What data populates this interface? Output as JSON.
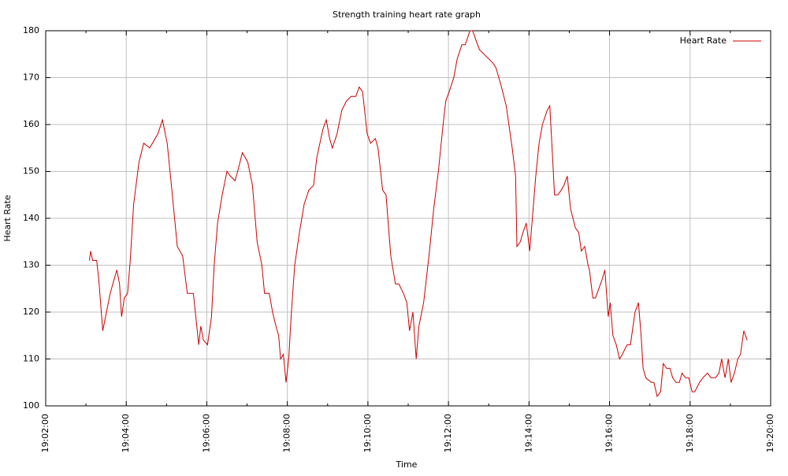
{
  "chart_data": {
    "type": "line",
    "title": "Strength training heart rate graph",
    "x_label": "Time",
    "y_label": "Heart Rate",
    "x": [
      "19:03:05",
      "19:03:07",
      "19:03:10",
      "19:03:16",
      "19:03:19",
      "19:03:25",
      "19:03:36",
      "19:03:46",
      "19:03:50",
      "19:03:53",
      "19:03:57",
      "19:04:02",
      "19:04:06",
      "19:04:11",
      "19:04:19",
      "19:04:26",
      "19:04:35",
      "19:04:47",
      "19:04:54",
      "19:05:01",
      "19:05:08",
      "19:05:16",
      "19:05:24",
      "19:05:31",
      "19:05:40",
      "19:05:48",
      "19:05:51",
      "19:05:55",
      "19:06:01",
      "19:06:07",
      "19:06:11",
      "19:06:16",
      "19:06:23",
      "19:06:30",
      "19:06:35",
      "19:06:42",
      "19:06:46",
      "19:06:53",
      "19:07:01",
      "19:07:08",
      "19:07:15",
      "19:07:22",
      "19:07:26",
      "19:07:33",
      "19:07:38",
      "19:07:43",
      "19:07:47",
      "19:07:50",
      "19:07:54",
      "19:07:58",
      "19:08:02",
      "19:08:06",
      "19:08:11",
      "19:08:18",
      "19:08:25",
      "19:08:32",
      "19:08:39",
      "19:08:44",
      "19:08:53",
      "19:08:58",
      "19:09:03",
      "19:09:07",
      "19:09:14",
      "19:09:21",
      "19:09:28",
      "19:09:35",
      "19:09:42",
      "19:09:47",
      "19:09:52",
      "19:09:59",
      "19:10:04",
      "19:10:11",
      "19:10:15",
      "19:10:22",
      "19:10:27",
      "19:10:34",
      "19:10:41",
      "19:10:46",
      "19:10:53",
      "19:10:58",
      "19:11:02",
      "19:11:07",
      "19:11:12",
      "19:11:16",
      "19:11:23",
      "19:11:31",
      "19:11:38",
      "19:11:45",
      "19:11:52",
      "19:11:56",
      "19:12:01",
      "19:12:08",
      "19:12:13",
      "19:12:20",
      "19:12:25",
      "19:12:32",
      "19:12:36",
      "19:12:41",
      "19:12:46",
      "19:12:53",
      "19:13:00",
      "19:13:07",
      "19:13:11",
      "19:13:19",
      "19:13:26",
      "19:13:30",
      "19:13:35",
      "19:13:40",
      "19:13:42",
      "19:13:47",
      "19:13:51",
      "19:13:56",
      "19:14:01",
      "19:14:05",
      "19:14:10",
      "19:14:15",
      "19:14:20",
      "19:14:27",
      "19:14:31",
      "19:14:34",
      "19:14:38",
      "19:14:43",
      "19:14:48",
      "19:14:52",
      "19:14:57",
      "19:15:02",
      "19:15:09",
      "19:15:14",
      "19:15:18",
      "19:15:23",
      "19:15:28",
      "19:15:30",
      "19:15:35",
      "19:15:39",
      "19:15:44",
      "19:15:49",
      "19:15:53",
      "19:15:58",
      "19:16:01",
      "19:16:05",
      "19:16:10",
      "19:16:15",
      "19:16:19",
      "19:16:26",
      "19:16:31",
      "19:16:38",
      "19:16:43",
      "19:16:47",
      "19:16:50",
      "19:16:54",
      "19:17:02",
      "19:17:06",
      "19:17:11",
      "19:17:16",
      "19:17:20",
      "19:17:25",
      "19:17:30",
      "19:17:34",
      "19:17:39",
      "19:17:44",
      "19:17:48",
      "19:17:53",
      "19:17:58",
      "19:18:03",
      "19:18:07",
      "19:18:14",
      "19:18:19",
      "19:18:26",
      "19:18:31",
      "19:18:38",
      "19:18:43",
      "19:18:47",
      "19:18:52",
      "19:18:57",
      "19:19:01",
      "19:19:06",
      "19:19:11",
      "19:19:15",
      "19:19:20",
      "19:19:25"
    ],
    "series": [
      {
        "name": "Heart Rate",
        "color": "#cc0000",
        "values": [
          131,
          133,
          131,
          131,
          127,
          116,
          124,
          129,
          126,
          119,
          123,
          124,
          131,
          143,
          152,
          156,
          155,
          158,
          161,
          156,
          146,
          134,
          132,
          124,
          124,
          113,
          117,
          114,
          113,
          119,
          130,
          139,
          145,
          150,
          149,
          148,
          150,
          154,
          152,
          147,
          135,
          130,
          124,
          124,
          120,
          117,
          115,
          110,
          111,
          105,
          110,
          120,
          130,
          137,
          143,
          146,
          147,
          153,
          159,
          161,
          157,
          155,
          158,
          163,
          165,
          166,
          166,
          168,
          167,
          158,
          156,
          157,
          155,
          146,
          145,
          132,
          126,
          126,
          124,
          122,
          116,
          120,
          110,
          117,
          122,
          132,
          142,
          150,
          160,
          165,
          167,
          170,
          174,
          177,
          177,
          180,
          180,
          178,
          176,
          175,
          174,
          173,
          172,
          168,
          164,
          160,
          155,
          149,
          134,
          135,
          137,
          139,
          133,
          140,
          149,
          156,
          160,
          163,
          164,
          156,
          145,
          145,
          146,
          147,
          149,
          142,
          138,
          137,
          133,
          134,
          130,
          129,
          123,
          123,
          125,
          127,
          129,
          119,
          122,
          115,
          113,
          110,
          111,
          113,
          113,
          120,
          122,
          115,
          108,
          106,
          105,
          105,
          102,
          103,
          109,
          108,
          108,
          106,
          105,
          105,
          107,
          106,
          106,
          103,
          103,
          105,
          106,
          107,
          106,
          106,
          107,
          110,
          106,
          110,
          105,
          107,
          110,
          111,
          116,
          114
        ]
      }
    ],
    "xlim": [
      "19:02:00",
      "19:20:00"
    ],
    "xticks": [
      "19:02:00",
      "19:04:00",
      "19:06:00",
      "19:08:00",
      "19:10:00",
      "19:12:00",
      "19:14:00",
      "19:16:00",
      "19:18:00",
      "19:20:00"
    ],
    "ylim": [
      100,
      180
    ],
    "yticks": [
      100,
      110,
      120,
      130,
      140,
      150,
      160,
      170,
      180
    ],
    "grid": true,
    "legend": "top-right"
  }
}
